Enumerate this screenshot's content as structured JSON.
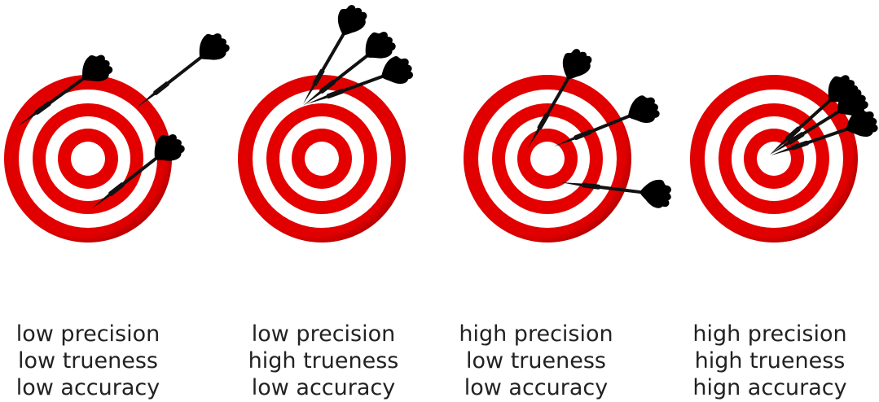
{
  "panels": [
    {
      "lines": [
        "low precision",
        "low trueness",
        "low accuracy"
      ]
    },
    {
      "lines": [
        "low precision",
        "high trueness",
        "low accuracy"
      ]
    },
    {
      "lines": [
        "high precision",
        "low trueness",
        "low accuracy"
      ]
    },
    {
      "lines": [
        "high precision",
        "high trueness",
        "hign accuracy"
      ]
    }
  ]
}
